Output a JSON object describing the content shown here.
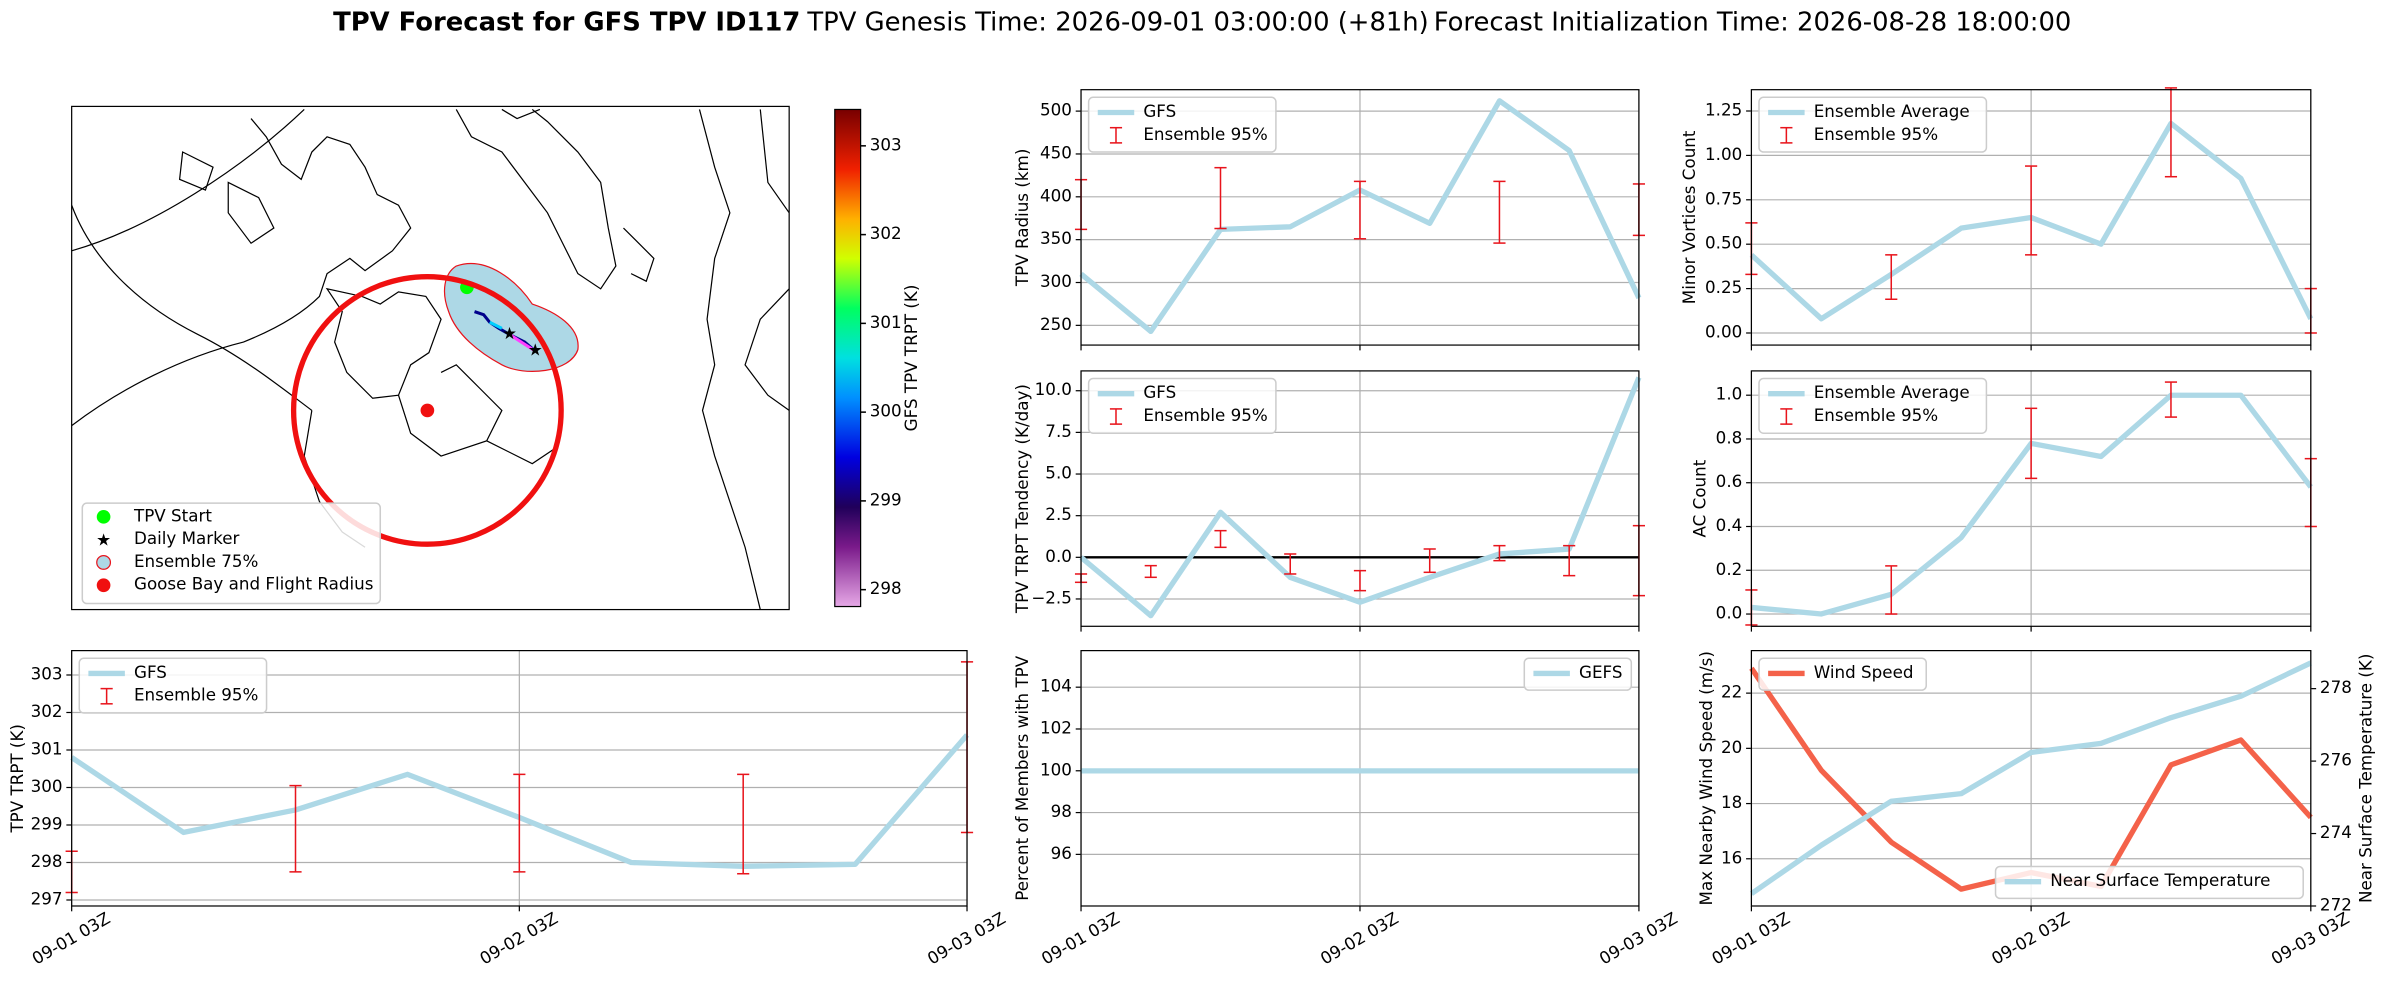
{
  "header": {
    "title": "TPV Forecast for GFS TPV ID117",
    "genesis": "TPV Genesis Time: 2026-09-01 03:00:00 (+81h)",
    "init": "Forecast Initialization Time: 2026-08-28 18:00:00"
  },
  "chart_data": [
    {
      "type": "map",
      "legend_labels": [
        "TPV Start",
        "Daily Marker",
        "Ensemble 75%",
        "Goose Bay and Flight Radius"
      ],
      "colorbar": {
        "label": "GFS TPV TRPT (K)",
        "clim": [
          297.81,
          303.41
        ],
        "ticks": [
          298,
          299,
          300,
          301,
          302,
          303
        ]
      }
    },
    {
      "type": "line",
      "ylabel": "TPV TRPT (K)",
      "categories": [
        "09-01 03Z",
        null,
        null,
        null,
        "09-02 03Z",
        null,
        null,
        null,
        "09-03 03Z"
      ],
      "ylim": [
        296.84,
        303.65
      ],
      "yticks": [
        297,
        298,
        299,
        300,
        301,
        302,
        303
      ],
      "grid": true,
      "legend": "upper left",
      "series": [
        {
          "name": "GFS",
          "color": "#add8e6",
          "values": [
            300.8,
            298.8,
            299.4,
            300.35,
            299.2,
            298.0,
            297.9,
            297.95,
            301.4
          ]
        }
      ],
      "errorbars": {
        "name": "Ensemble 95%",
        "color": "#e8141c",
        "high": [
          298.3,
          null,
          300.05,
          null,
          300.35,
          null,
          300.35,
          null,
          303.35
        ],
        "low": [
          297.2,
          null,
          297.75,
          null,
          297.75,
          null,
          297.7,
          null,
          298.8
        ]
      }
    },
    {
      "type": "line",
      "ylabel": "TPV Radius (km)",
      "ylim": [
        227,
        525
      ],
      "yticks": [
        250,
        300,
        350,
        400,
        450,
        500
      ],
      "grid": true,
      "legend": "upper left",
      "series": [
        {
          "name": "GFS",
          "color": "#add8e6",
          "values": [
            310,
            243,
            362,
            365,
            408,
            369,
            512,
            454,
            282
          ]
        }
      ],
      "errorbars": {
        "name": "Ensemble 95%",
        "color": "#e8141c",
        "high": [
          420,
          null,
          434,
          null,
          418,
          null,
          418,
          null,
          415
        ],
        "low": [
          362,
          null,
          363,
          null,
          351,
          null,
          346,
          null,
          355
        ]
      }
    },
    {
      "type": "line",
      "ylabel": "TPV TRPT Tendency (K/day)",
      "ylim": [
        -4.14,
        11.19
      ],
      "yticks": [
        {
          "value": -2.5,
          "label": "−2.5"
        },
        {
          "value": 0,
          "label": "0.0"
        },
        2.5,
        {
          "value": 5,
          "label": "5.0"
        },
        7.5,
        {
          "value": 10,
          "label": "10.0"
        }
      ],
      "grid": true,
      "legend": "upper left",
      "hline": 0,
      "series": [
        {
          "name": "GFS",
          "color": "#add8e6",
          "values": [
            0.0,
            -3.5,
            2.7,
            -1.2,
            -2.7,
            -1.2,
            0.2,
            0.5,
            10.8
          ]
        }
      ],
      "errorbars": {
        "name": "Ensemble 95%",
        "color": "#e8141c",
        "high": [
          -1.0,
          -0.5,
          1.6,
          0.2,
          -0.8,
          0.5,
          0.7,
          0.7,
          1.9
        ],
        "low": [
          -1.5,
          -1.2,
          0.6,
          -1.0,
          -2.0,
          -0.9,
          -0.2,
          -1.1,
          -2.3
        ]
      }
    },
    {
      "type": "line",
      "ylabel": "Percent of Members with TPV",
      "categories": [
        "09-01 03Z",
        null,
        null,
        null,
        "09-02 03Z",
        null,
        null,
        null,
        "09-03 03Z"
      ],
      "ylim": [
        93.53,
        105.75
      ],
      "yticks": [
        96,
        98,
        100,
        102,
        104
      ],
      "grid": true,
      "legend": "upper right",
      "series": [
        {
          "name": "GEFS",
          "color": "#add8e6",
          "values": [
            100,
            100,
            100,
            100,
            100,
            100,
            100,
            100,
            100
          ]
        }
      ]
    },
    {
      "type": "line",
      "ylabel": "Minor Vortices Count",
      "ylim": [
        -0.068,
        1.37
      ],
      "yticks": [
        {
          "value": 0,
          "label": "0.00"
        },
        0.25,
        {
          "value": 0.5,
          "label": "0.50"
        },
        0.75,
        {
          "value": 1,
          "label": "1.00"
        },
        1.25
      ],
      "grid": true,
      "legend": "upper left",
      "series": [
        {
          "name": "Ensemble Average",
          "color": "#add8e6",
          "values": [
            0.44,
            0.08,
            0.33,
            0.59,
            0.65,
            0.5,
            1.18,
            0.87,
            0.08
          ]
        }
      ],
      "errorbars": {
        "name": "Ensemble 95%",
        "color": "#e8141c",
        "high": [
          0.62,
          null,
          0.44,
          null,
          0.94,
          null,
          1.38,
          null,
          0.25
        ],
        "low": [
          0.33,
          null,
          0.19,
          null,
          0.44,
          null,
          0.88,
          null,
          0.0
        ]
      }
    },
    {
      "type": "line",
      "ylabel": "AC Count",
      "ylim": [
        -0.056,
        1.111
      ],
      "yticks": [
        {
          "value": 0,
          "label": "0.0"
        },
        0.2,
        0.4,
        0.6,
        0.8,
        {
          "value": 1,
          "label": "1.0"
        }
      ],
      "grid": true,
      "legend": "upper left",
      "series": [
        {
          "name": "Ensemble Average",
          "color": "#add8e6",
          "values": [
            0.03,
            0.0,
            0.09,
            0.35,
            0.78,
            0.72,
            1.0,
            1.0,
            0.58
          ]
        }
      ],
      "errorbars": {
        "name": "Ensemble 95%",
        "color": "#e8141c",
        "high": [
          0.11,
          null,
          0.22,
          null,
          0.94,
          null,
          1.06,
          null,
          0.71
        ],
        "low": [
          -0.05,
          null,
          0.0,
          null,
          0.62,
          null,
          0.9,
          null,
          0.4
        ]
      }
    },
    {
      "type": "line",
      "ylabel": "Max Nearby Wind Speed (m/s)",
      "y2label": "Near Surface Temperature (K)",
      "ycolor": "#f4624a",
      "y2color": "#4169e1",
      "categories": [
        "09-01 03Z",
        null,
        null,
        null,
        "09-02 03Z",
        null,
        null,
        null,
        "09-03 03Z"
      ],
      "ylim": [
        14.29,
        23.54
      ],
      "yticks": [
        16,
        18,
        20,
        22
      ],
      "y2lim": [
        272,
        279.05
      ],
      "y2ticks": [
        272,
        274,
        276,
        278
      ],
      "grid": true,
      "legend": "upper left",
      "legend2": "lower right",
      "series": [
        {
          "name": "Wind Speed",
          "color": "#f4624a",
          "values": [
            22.9,
            19.2,
            16.6,
            14.9,
            15.5,
            15.0,
            19.4,
            20.3,
            17.5
          ]
        },
        {
          "name": "Near Surface Temperature",
          "color": "#add8e6",
          "axis": "y2",
          "values": [
            272.34,
            273.68,
            274.89,
            275.1,
            276.24,
            276.49,
            277.2,
            277.79,
            278.71
          ]
        }
      ]
    }
  ]
}
